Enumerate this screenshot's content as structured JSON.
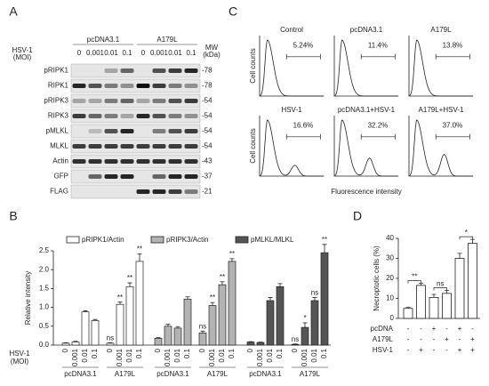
{
  "panels": {
    "A": {
      "letter": "A",
      "virus_label": "HSV-1",
      "moi_label": "(MOI)",
      "groups": [
        "pcDNA3.1",
        "A179L"
      ],
      "lanes": [
        "0",
        "0.001",
        "0.01",
        "0.1",
        "0",
        "0.001",
        "0.01",
        "0.1"
      ],
      "mw_label": [
        "MW",
        "(kDa)"
      ],
      "rows": [
        {
          "name": "pRIPK1",
          "mw": "-78"
        },
        {
          "name": "RIPK1",
          "mw": "-78"
        },
        {
          "name": "pRIPK3",
          "mw": "-54"
        },
        {
          "name": "RIPK3",
          "mw": "-54"
        },
        {
          "name": "pMLKL",
          "mw": "-54"
        },
        {
          "name": "MLKL",
          "mw": "-54"
        },
        {
          "name": "Actin",
          "mw": "-43"
        },
        {
          "name": "GFP",
          "mw": "-37"
        },
        {
          "name": "FLAG",
          "mw": "-21"
        }
      ]
    },
    "C": {
      "letter": "C",
      "y_label": "Cell counts",
      "x_label": "Fluorescence intensity",
      "plots": [
        {
          "title": "Control",
          "percent": "5.24%"
        },
        {
          "title": "pcDNA3.1",
          "percent": "11.4%"
        },
        {
          "title": "A179L",
          "percent": "13.8%"
        },
        {
          "title": "HSV-1",
          "percent": "16.6%"
        },
        {
          "title": "pcDNA3.1+HSV-1",
          "percent": "32.2%"
        },
        {
          "title": "A179L+HSV-1",
          "percent": "37.0%"
        }
      ]
    }
  },
  "chart_data": [
    {
      "letter": "B",
      "type": "bar",
      "ylabel": "Relative intensity",
      "ylim": [
        0,
        2.5
      ],
      "yticks": [
        {
          "value": 0,
          "label": "0.0"
        },
        0.5,
        {
          "value": 1,
          "label": "1.0"
        },
        1.5,
        {
          "value": 2,
          "label": "2.0"
        },
        2.5
      ],
      "x_row_labels": [
        "HSV-1",
        "(MOI)"
      ],
      "groups": [
        "pcDNA3.1",
        "A179L"
      ],
      "categories": [
        "0",
        "0.001",
        "0.01",
        "0.1",
        "0",
        "0.001",
        "0.01",
        "0.1"
      ],
      "series": [
        {
          "name": "pRIPK1/Actin",
          "color": "#ffffff",
          "values": [
            0.05,
            0.08,
            0.88,
            0.65,
            0.05,
            1.08,
            1.55,
            2.22
          ],
          "errors": [
            0.01,
            0.02,
            0.03,
            0.03,
            0.01,
            0.06,
            0.1,
            0.2
          ],
          "annotations": [
            null,
            null,
            null,
            null,
            "ns",
            "**",
            "**",
            "**"
          ]
        },
        {
          "name": "pRIPK3/Actin",
          "color": "#b3b3b3",
          "values": [
            0.18,
            0.5,
            0.45,
            1.22,
            0.32,
            1.05,
            1.6,
            2.22
          ],
          "errors": [
            0.02,
            0.05,
            0.04,
            0.06,
            0.05,
            0.08,
            0.08,
            0.07
          ],
          "annotations": [
            null,
            null,
            null,
            null,
            "ns",
            "**",
            "**",
            "**"
          ]
        },
        {
          "name": "pMLKL/MLKL",
          "color": "#555555",
          "values": [
            0.08,
            0.07,
            1.18,
            1.55,
            0.02,
            0.47,
            1.18,
            2.45
          ],
          "errors": [
            0.01,
            0.01,
            0.08,
            0.08,
            0.01,
            0.12,
            0.08,
            0.22
          ],
          "annotations": [
            null,
            null,
            null,
            null,
            "ns",
            "*",
            "ns",
            "**"
          ]
        }
      ]
    },
    {
      "letter": "D",
      "type": "bar",
      "ylabel": "Necroptotic cells (%)",
      "ylim": [
        0,
        40
      ],
      "yticks": [
        0,
        10,
        20,
        30,
        40
      ],
      "color": "#ffffff",
      "values": [
        5,
        16.5,
        10.5,
        12.5,
        30,
        37.5
      ],
      "errors": [
        0.5,
        1,
        1.5,
        1.5,
        2.5,
        2
      ],
      "annotations": [
        "**",
        null,
        "ns",
        null,
        "*",
        null
      ],
      "conditions": [
        {
          "name": "pcDNA",
          "signs": [
            "-",
            "-",
            "+",
            "-",
            "+",
            "-"
          ]
        },
        {
          "name": "A179L",
          "signs": [
            "-",
            "-",
            "-",
            "+",
            "-",
            "+"
          ]
        },
        {
          "name": "HSV-1",
          "signs": [
            "-",
            "+",
            "-",
            "-",
            "+",
            "+"
          ]
        }
      ]
    }
  ]
}
